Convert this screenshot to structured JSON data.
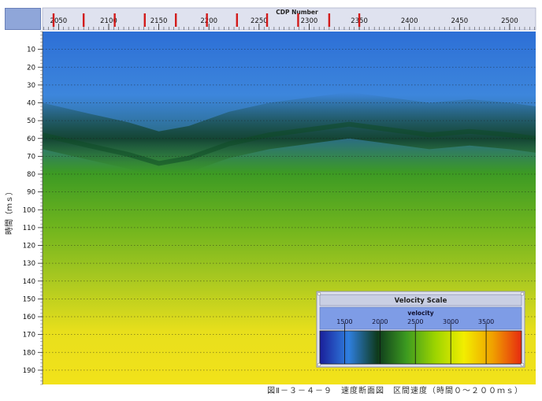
{
  "chart_data": {
    "type": "heatmap",
    "title": "",
    "xlabel": "CDP Number",
    "ylabel": "時間（ｍｓ）",
    "x_ticks": [
      2050,
      2100,
      2150,
      2200,
      2250,
      2300,
      2350,
      2400,
      2450,
      2500
    ],
    "y_ticks": [
      10,
      20,
      30,
      40,
      50,
      60,
      70,
      80,
      90,
      100,
      110,
      120,
      130,
      140,
      150,
      160,
      170,
      180,
      190
    ],
    "xlim": [
      2034,
      2526
    ],
    "ylim": [
      0,
      198
    ],
    "red_markers_cdp": [
      2045,
      2075,
      2106,
      2136,
      2167,
      2198,
      2228,
      2258,
      2289,
      2320,
      2350
    ],
    "red_markers_note": "",
    "low_velocity_trough_depth_ms": [
      {
        "cdp": 2034,
        "depth": 58
      },
      {
        "cdp": 2080,
        "depth": 64
      },
      {
        "cdp": 2120,
        "depth": 69
      },
      {
        "cdp": 2150,
        "depth": 74
      },
      {
        "cdp": 2180,
        "depth": 71
      },
      {
        "cdp": 2220,
        "depth": 63
      },
      {
        "cdp": 2260,
        "depth": 58
      },
      {
        "cdp": 2300,
        "depth": 55
      },
      {
        "cdp": 2340,
        "depth": 52
      },
      {
        "cdp": 2380,
        "depth": 55
      },
      {
        "cdp": 2420,
        "depth": 58
      },
      {
        "cdp": 2460,
        "depth": 56
      },
      {
        "cdp": 2500,
        "depth": 58
      },
      {
        "cdp": 2526,
        "depth": 60
      }
    ],
    "velocity_by_depth_ms": [
      {
        "depth": 0,
        "velocity": 1500
      },
      {
        "depth": 40,
        "velocity": 1900
      },
      {
        "depth": 65,
        "velocity": 2400
      },
      {
        "depth": 100,
        "velocity": 2700
      },
      {
        "depth": 140,
        "velocity": 3000
      },
      {
        "depth": 198,
        "velocity": 3200
      }
    ],
    "grid": "horizontal dotted lines at each y tick"
  },
  "legend": {
    "title": "Velocity Scale",
    "label": "velocity",
    "ticks": [
      1500,
      2000,
      2500,
      3000,
      3500
    ],
    "colors": [
      "#1a1f9a",
      "#2f7fe0",
      "#0e3a1c",
      "#3c9a20",
      "#9cd400",
      "#f2ee00",
      "#f0a000",
      "#e62a10"
    ],
    "range": [
      1150,
      4000
    ]
  },
  "caption": "図Ⅱ－３－４－９　速度断面図　区間速度（時間０～２００ｍｓ）",
  "colors": {
    "blue_top": "#2d6fd6",
    "blue_mid": "#3d86dc",
    "dark_green": "#0e4a26",
    "green": "#3c9a24",
    "yellow_green": "#a8c820",
    "yellow": "#f2e21a",
    "axis_bar": "#dfe2ef",
    "marker": "#d21a1a"
  }
}
